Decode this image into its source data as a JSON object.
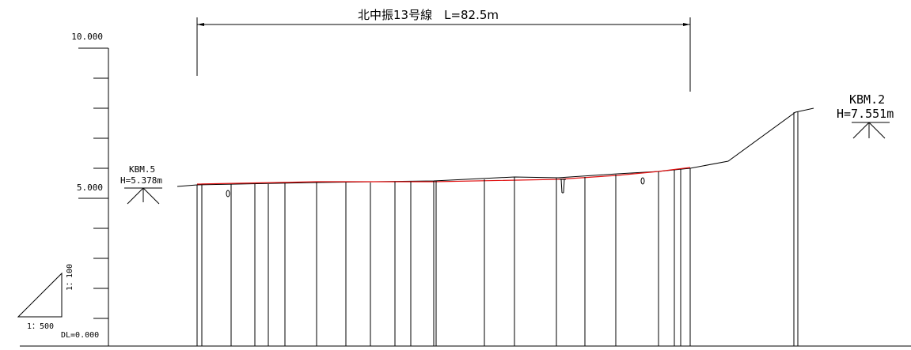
{
  "title": "北中振13号線　L=82.5m",
  "y_axis": {
    "top_label": "10.000",
    "mid_label": "5.000",
    "datum_label": "DL=0.000"
  },
  "benchmarks": [
    {
      "name": "KBM.5",
      "height": "H=5.378m"
    },
    {
      "name": "KBM.2",
      "height": "H=7.551m"
    }
  ],
  "scale": {
    "horizontal": "1：500",
    "vertical": "1：100"
  },
  "colors": {
    "line": "#000000",
    "design_line": "#e01010",
    "background": "#ffffff"
  }
}
